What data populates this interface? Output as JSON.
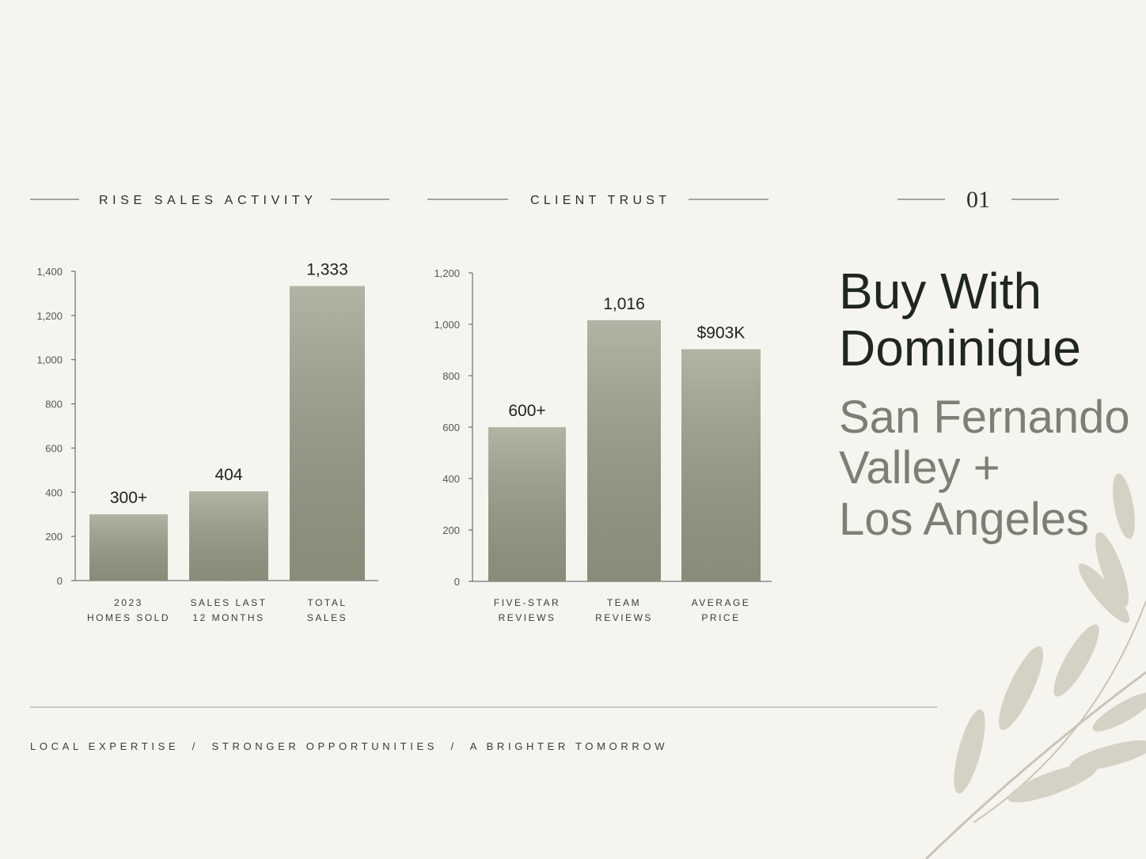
{
  "chart_data": [
    {
      "type": "bar",
      "title": "RISE SALES ACTIVITY",
      "categories": [
        [
          "2023",
          "HOMES SOLD"
        ],
        [
          "SALES LAST",
          "12 MONTHS"
        ],
        [
          "TOTAL",
          "SALES"
        ]
      ],
      "values": [
        300,
        404,
        1333
      ],
      "value_labels": [
        "300+",
        "404",
        "1,333"
      ],
      "color": "#9c9f8a",
      "ylim": [
        0,
        1400
      ],
      "yticks": [
        0,
        200,
        400,
        600,
        800,
        {
          "value": 1000,
          "label": "1,000"
        },
        {
          "value": 1200,
          "label": "1,200"
        },
        {
          "value": 1400,
          "label": "1,400"
        }
      ]
    },
    {
      "type": "bar",
      "title": "CLIENT TRUST",
      "categories": [
        [
          "FIVE-STAR",
          "REVIEWS"
        ],
        [
          "TEAM",
          "REVIEWS"
        ],
        [
          "AVERAGE",
          "PRICE"
        ]
      ],
      "values": [
        600,
        1016,
        903
      ],
      "value_labels": [
        "600+",
        "1,016",
        "$903K"
      ],
      "color": "#9c9f8a",
      "ylim": [
        0,
        1200
      ],
      "yticks": [
        0,
        200,
        400,
        600,
        800,
        {
          "value": 1000,
          "label": "1,000"
        },
        {
          "value": 1200,
          "label": "1,200"
        }
      ]
    }
  ],
  "page": {
    "number": "01",
    "title": [
      "Buy With",
      "Dominique"
    ],
    "subtitle": [
      "San Fernando",
      "Valley +",
      "Los Angeles"
    ],
    "footer": "LOCAL EXPERTISE  /  STRONGER OPPORTUNITIES  /  A BRIGHTER TOMORROW"
  }
}
